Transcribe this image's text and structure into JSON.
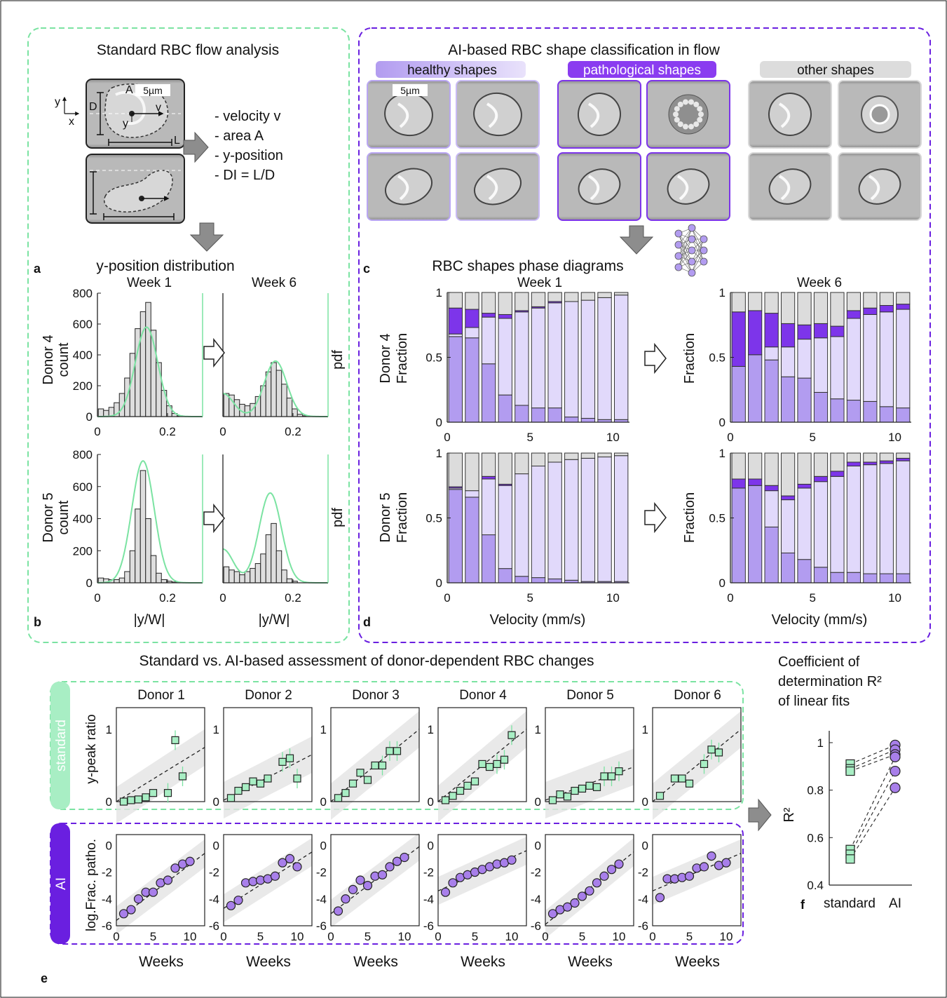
{
  "panel_letters": {
    "a": "a",
    "b": "b",
    "c": "c",
    "d": "d",
    "e": "e",
    "f": "f"
  },
  "standard": {
    "title": "Standard RBC flow analysis",
    "scale_bar": "5µm",
    "axis_y": "y",
    "axis_x": "x",
    "cell_labels": {
      "A": "A",
      "D": "D",
      "L": "L",
      "v": "v",
      "y": "y"
    },
    "params": [
      "- velocity v",
      "- area A",
      "- y-position",
      "- DI = L/D"
    ],
    "dist_title": "y-position distribution",
    "week1": "Week 1",
    "week6": "Week 6",
    "donor4": "Donor 4",
    "donor5": "Donor 5",
    "ylabel_left": "count",
    "ylabel_right": "pdf",
    "xlabel": "|y/W|"
  },
  "ai": {
    "title": "AI-based RBC shape classification in flow",
    "healthy": "healthy shapes",
    "patho": "pathological shapes",
    "other": "other shapes",
    "scale_bar": "5µm",
    "phase_title": "RBC shapes phase diagrams",
    "week1": "Week 1",
    "week6": "Week 6",
    "donor4": "Donor 4",
    "donor5": "Donor 5",
    "ylabel": "Fraction",
    "xlabel": "Velocity (mm/s)"
  },
  "bottom": {
    "title": "Standard vs. AI-based assessment of donor-dependent RBC changes",
    "donors": [
      "Donor 1",
      "Donor 2",
      "Donor 3",
      "Donor 4",
      "Donor 5",
      "Donor 6"
    ],
    "standard_tab": "standard",
    "ai_tab": "AI",
    "ylabel_std": "y-peak ratio",
    "ylabel_ai": "log.Frac. patho.",
    "xlabel": "Weeks",
    "r2_title": [
      "Coefficient of",
      "determination R²",
      "of linear fits"
    ],
    "r2_ylabel": "R²",
    "r2_x": [
      "standard",
      "AI"
    ]
  },
  "colors": {
    "green": "#7be3a2",
    "green_fill": "#a8eec4",
    "purple": "#6a1fe0",
    "purple_marker": "#a87fea",
    "healthy_fill": "#b29cf0",
    "healthy_light": "#e1d9fb",
    "patho_fill": "#7d35ea",
    "other_fill": "#dcdcdc"
  },
  "chart_data": [
    {
      "type": "bar",
      "id": "hist-d4-w1",
      "x": [
        0.01,
        0.025,
        0.04,
        0.055,
        0.07,
        0.085,
        0.1,
        0.115,
        0.13,
        0.145,
        0.16,
        0.175,
        0.19,
        0.205,
        0.22,
        0.235
      ],
      "values": [
        50,
        40,
        60,
        90,
        150,
        250,
        410,
        570,
        680,
        740,
        560,
        350,
        170,
        70,
        20,
        5
      ],
      "pdf_peaks": [
        [
          0.14,
          580
        ]
      ],
      "xlim": [
        0,
        0.3
      ],
      "ylim": [
        0,
        800
      ],
      "yticks": [
        0,
        200,
        400,
        600,
        800
      ],
      "xticks": [
        0,
        0.2
      ]
    },
    {
      "type": "bar",
      "id": "hist-d4-w6",
      "x": [
        0.01,
        0.025,
        0.04,
        0.055,
        0.07,
        0.085,
        0.1,
        0.115,
        0.13,
        0.145,
        0.16,
        0.175,
        0.19,
        0.205,
        0.22,
        0.235
      ],
      "values": [
        150,
        140,
        110,
        80,
        70,
        85,
        130,
        200,
        290,
        350,
        300,
        210,
        120,
        50,
        15,
        5
      ],
      "pdf_peaks": [
        [
          0,
          150
        ],
        [
          0.15,
          360
        ]
      ],
      "xlim": [
        0,
        0.3
      ],
      "ylim": [
        0,
        800
      ],
      "xticks": [
        0,
        0.2
      ]
    },
    {
      "type": "bar",
      "id": "hist-d5-w1",
      "x": [
        0.01,
        0.025,
        0.04,
        0.055,
        0.07,
        0.085,
        0.1,
        0.115,
        0.13,
        0.145,
        0.16,
        0.175,
        0.19,
        0.205,
        0.22,
        0.235
      ],
      "values": [
        30,
        25,
        20,
        20,
        30,
        70,
        200,
        460,
        700,
        400,
        170,
        60,
        20,
        10,
        5,
        0
      ],
      "pdf_peaks": [
        [
          0.13,
          760
        ]
      ],
      "xlim": [
        0,
        0.3
      ],
      "ylim": [
        0,
        800
      ],
      "yticks": [
        0,
        200,
        400,
        600,
        800
      ],
      "xticks": [
        0,
        0.2
      ]
    },
    {
      "type": "bar",
      "id": "hist-d5-w6",
      "x": [
        0.01,
        0.025,
        0.04,
        0.055,
        0.07,
        0.085,
        0.1,
        0.115,
        0.13,
        0.145,
        0.16,
        0.175,
        0.19,
        0.205,
        0.22,
        0.235
      ],
      "values": [
        100,
        80,
        70,
        50,
        70,
        90,
        120,
        180,
        300,
        370,
        200,
        80,
        25,
        10,
        0,
        0
      ],
      "pdf_peaks": [
        [
          0,
          210
        ],
        [
          0.135,
          560
        ]
      ],
      "xlim": [
        0,
        0.3
      ],
      "ylim": [
        0,
        800
      ],
      "xticks": [
        0,
        0.2
      ]
    },
    {
      "type": "bar",
      "id": "phase-d4-w1",
      "stacked": true,
      "categories": [
        0.5,
        1.5,
        2.5,
        3.5,
        4.5,
        5.5,
        6.5,
        7.5,
        8.5,
        9.5,
        10.5
      ],
      "series": [
        {
          "values": [
            0.66,
            0.65,
            0.45,
            0.21,
            0.13,
            0.11,
            0.11,
            0.04,
            0.03,
            0.02,
            0.02
          ]
        },
        {
          "values": [
            0.02,
            0.08,
            0.36,
            0.59,
            0.72,
            0.77,
            0.81,
            0.89,
            0.91,
            0.94,
            0.96
          ]
        },
        {
          "values": [
            0.2,
            0.14,
            0.03,
            0.03,
            0.01,
            0.01,
            0.01,
            0,
            0,
            0,
            0
          ]
        },
        {
          "values": [
            0.12,
            0.13,
            0.16,
            0.17,
            0.14,
            0.11,
            0.07,
            0.07,
            0.06,
            0.04,
            0.02
          ]
        }
      ],
      "xlim": [
        0,
        11
      ],
      "ylim": [
        0,
        1
      ],
      "xticks": [
        0,
        5,
        10
      ],
      "yticks": [
        0,
        0.5,
        1
      ]
    },
    {
      "type": "bar",
      "id": "phase-d4-w6",
      "stacked": true,
      "categories": [
        0.5,
        1.5,
        2.5,
        3.5,
        4.5,
        5.5,
        6.5,
        7.5,
        8.5,
        9.5,
        10.5
      ],
      "series": [
        {
          "values": [
            0.43,
            0.52,
            0.48,
            0.35,
            0.34,
            0.23,
            0.18,
            0.17,
            0.16,
            0.12,
            0.11
          ]
        },
        {
          "values": [
            0,
            0,
            0.1,
            0.23,
            0.3,
            0.42,
            0.48,
            0.63,
            0.67,
            0.73,
            0.76
          ]
        },
        {
          "values": [
            0.42,
            0.34,
            0.26,
            0.18,
            0.11,
            0.11,
            0.08,
            0.06,
            0.05,
            0.05,
            0.04
          ]
        },
        {
          "values": [
            0.15,
            0.14,
            0.16,
            0.24,
            0.25,
            0.24,
            0.26,
            0.14,
            0.12,
            0.1,
            0.09
          ]
        }
      ],
      "xlim": [
        0,
        11
      ],
      "ylim": [
        0,
        1
      ],
      "xticks": [
        0,
        5,
        10
      ],
      "yticks": [
        0,
        0.5,
        1
      ]
    },
    {
      "type": "bar",
      "id": "phase-d5-w1",
      "stacked": true,
      "categories": [
        0.5,
        1.5,
        2.5,
        3.5,
        4.5,
        5.5,
        6.5,
        7.5,
        8.5,
        9.5,
        10.5
      ],
      "series": [
        {
          "values": [
            0.72,
            0.66,
            0.37,
            0.11,
            0.05,
            0.04,
            0.03,
            0.02,
            0.01,
            0.01,
            0.01
          ]
        },
        {
          "values": [
            0.01,
            0.05,
            0.43,
            0.64,
            0.79,
            0.86,
            0.9,
            0.93,
            0.95,
            0.96,
            0.97
          ]
        },
        {
          "values": [
            0.01,
            0,
            0.02,
            0.01,
            0,
            0,
            0,
            0,
            0,
            0,
            0
          ]
        },
        {
          "values": [
            0.26,
            0.29,
            0.18,
            0.24,
            0.16,
            0.1,
            0.07,
            0.05,
            0.04,
            0.03,
            0.02
          ]
        }
      ],
      "xlim": [
        0,
        11
      ],
      "ylim": [
        0,
        1
      ],
      "xticks": [
        0,
        5,
        10
      ],
      "yticks": [
        0,
        0.5,
        1
      ]
    },
    {
      "type": "bar",
      "id": "phase-d5-w6",
      "stacked": true,
      "categories": [
        0.5,
        1.5,
        2.5,
        3.5,
        4.5,
        5.5,
        6.5,
        7.5,
        8.5,
        9.5,
        10.5
      ],
      "series": [
        {
          "values": [
            0.73,
            0.75,
            0.43,
            0.23,
            0.18,
            0.12,
            0.08,
            0.08,
            0.07,
            0.07,
            0.07
          ]
        },
        {
          "values": [
            0,
            0,
            0.28,
            0.41,
            0.55,
            0.66,
            0.74,
            0.82,
            0.84,
            0.85,
            0.87
          ]
        },
        {
          "values": [
            0.07,
            0.05,
            0.04,
            0.03,
            0.03,
            0.04,
            0.04,
            0.03,
            0.02,
            0.02,
            0.02
          ]
        },
        {
          "values": [
            0.2,
            0.2,
            0.25,
            0.33,
            0.24,
            0.18,
            0.14,
            0.07,
            0.07,
            0.06,
            0.04
          ]
        }
      ],
      "xlim": [
        0,
        11
      ],
      "ylim": [
        0,
        1
      ],
      "xticks": [
        0,
        5,
        10
      ],
      "yticks": [
        0,
        0.5,
        1
      ]
    },
    {
      "type": "scatter",
      "id": "std-donor1",
      "x": [
        1,
        2,
        3,
        4,
        5,
        7,
        8,
        9
      ],
      "y": [
        0.0,
        0.02,
        0.03,
        0.06,
        0.12,
        0.12,
        0.85,
        0.35
      ],
      "fit": [
        [
          0,
          -0.05
        ],
        [
          12,
          0.75
        ]
      ],
      "xlim": [
        0,
        12
      ],
      "ylim": [
        0,
        1.3
      ],
      "yticks": [
        0,
        1
      ]
    },
    {
      "type": "scatter",
      "id": "std-donor2",
      "x": [
        1,
        2,
        3,
        4,
        5,
        6,
        8,
        9,
        10
      ],
      "y": [
        0.05,
        0.15,
        0.2,
        0.28,
        0.25,
        0.32,
        0.55,
        0.6,
        0.32
      ],
      "fit": [
        [
          0,
          0.02
        ],
        [
          12,
          0.65
        ]
      ],
      "xlim": [
        0,
        12
      ],
      "ylim": [
        0,
        1.3
      ],
      "yticks": [
        0,
        1
      ]
    },
    {
      "type": "scatter",
      "id": "std-donor3",
      "x": [
        1,
        2,
        3,
        4,
        5,
        6,
        7,
        8,
        9
      ],
      "y": [
        0.05,
        0.12,
        0.25,
        0.4,
        0.3,
        0.5,
        0.5,
        0.7,
        0.7
      ],
      "fit": [
        [
          0,
          0.0
        ],
        [
          12,
          1.0
        ]
      ],
      "xlim": [
        0,
        12
      ],
      "ylim": [
        0,
        1.3
      ],
      "yticks": [
        0,
        1
      ]
    },
    {
      "type": "scatter",
      "id": "std-donor4",
      "x": [
        1,
        2,
        3,
        4,
        5,
        6,
        7,
        8,
        9,
        10
      ],
      "y": [
        0.02,
        0.08,
        0.15,
        0.22,
        0.28,
        0.52,
        0.48,
        0.52,
        0.58,
        0.92
      ],
      "fit": [
        [
          0,
          -0.03
        ],
        [
          12,
          1.0
        ]
      ],
      "xlim": [
        0,
        12
      ],
      "ylim": [
        0,
        1.3
      ],
      "yticks": [
        0,
        1
      ]
    },
    {
      "type": "scatter",
      "id": "std-donor5",
      "x": [
        1,
        2,
        3,
        4,
        5,
        6,
        7,
        8,
        9,
        10
      ],
      "y": [
        0.02,
        0.1,
        0.07,
        0.15,
        0.18,
        0.22,
        0.2,
        0.35,
        0.35,
        0.42
      ],
      "fit": [
        [
          0,
          0.02
        ],
        [
          12,
          0.48
        ]
      ],
      "xlim": [
        0,
        12
      ],
      "ylim": [
        0,
        1.3
      ],
      "yticks": [
        0,
        1
      ]
    },
    {
      "type": "scatter",
      "id": "std-donor6",
      "x": [
        1,
        3,
        4,
        5,
        7,
        8,
        9
      ],
      "y": [
        0.08,
        0.32,
        0.32,
        0.25,
        0.52,
        0.72,
        0.68
      ],
      "fit": [
        [
          0,
          0.0
        ],
        [
          12,
          1.0
        ]
      ],
      "xlim": [
        0,
        12
      ],
      "ylim": [
        0,
        1.3
      ],
      "yticks": [
        0,
        1
      ]
    },
    {
      "type": "scatter",
      "id": "ai-donor1",
      "x": [
        1,
        2,
        3,
        4,
        5,
        6,
        7,
        8,
        9,
        10
      ],
      "y": [
        -5.1,
        -4.8,
        -4.0,
        -3.5,
        -3.5,
        -2.8,
        -2.6,
        -1.7,
        -1.4,
        -1.2
      ],
      "fit": [
        [
          0,
          -5.6
        ],
        [
          12,
          -0.6
        ]
      ],
      "xlim": [
        0,
        12
      ],
      "ylim": [
        -6,
        0.8
      ],
      "yticks": [
        0,
        -2,
        -4,
        -6
      ],
      "xticks": [
        0,
        5,
        10
      ]
    },
    {
      "type": "scatter",
      "id": "ai-donor2",
      "x": [
        1,
        2,
        3,
        4,
        5,
        6,
        7,
        8,
        9,
        10
      ],
      "y": [
        -4.5,
        -4.1,
        -2.8,
        -2.7,
        -2.6,
        -2.5,
        -2.3,
        -1.3,
        -1.0,
        -1.6
      ],
      "fit": [
        [
          0,
          -4.7
        ],
        [
          12,
          -0.5
        ]
      ],
      "xlim": [
        0,
        12
      ],
      "ylim": [
        -6,
        0.8
      ],
      "yticks": [
        0,
        -2,
        -4,
        -6
      ],
      "xticks": [
        0,
        5,
        10
      ]
    },
    {
      "type": "scatter",
      "id": "ai-donor3",
      "x": [
        1,
        2,
        3,
        4,
        5,
        6,
        7,
        8,
        9,
        10
      ],
      "y": [
        -4.9,
        -4.0,
        -3.3,
        -2.6,
        -3.0,
        -2.3,
        -2.2,
        -1.6,
        -1.2,
        -0.9
      ],
      "fit": [
        [
          0,
          -5.1
        ],
        [
          12,
          -0.1
        ]
      ],
      "xlim": [
        0,
        12
      ],
      "ylim": [
        -6,
        0.8
      ],
      "yticks": [
        0,
        -2,
        -4,
        -6
      ],
      "xticks": [
        0,
        5,
        10
      ]
    },
    {
      "type": "scatter",
      "id": "ai-donor4",
      "x": [
        1,
        2,
        3,
        4,
        5,
        6,
        7,
        8,
        9,
        10
      ],
      "y": [
        -3.5,
        -2.8,
        -2.4,
        -2.2,
        -2.0,
        -1.8,
        -1.6,
        -1.4,
        -1.3,
        -1.1
      ],
      "fit": [
        [
          0,
          -3.4
        ],
        [
          12,
          -0.4
        ]
      ],
      "xlim": [
        0,
        12
      ],
      "ylim": [
        -6,
        0.8
      ],
      "yticks": [
        0,
        -2,
        -4,
        -6
      ],
      "xticks": [
        0,
        5,
        10
      ]
    },
    {
      "type": "scatter",
      "id": "ai-donor5",
      "x": [
        1,
        2,
        3,
        4,
        5,
        6,
        7,
        8,
        9,
        10
      ],
      "y": [
        -5.1,
        -4.8,
        -4.6,
        -4.3,
        -3.8,
        -3.4,
        -2.8,
        -2.3,
        -1.8,
        -1.4
      ],
      "fit": [
        [
          0,
          -5.9
        ],
        [
          12,
          -0.5
        ]
      ],
      "xlim": [
        0,
        12
      ],
      "ylim": [
        -6,
        0.8
      ],
      "yticks": [
        0,
        -2,
        -4,
        -6
      ],
      "xticks": [
        0,
        5,
        10
      ]
    },
    {
      "type": "scatter",
      "id": "ai-donor6",
      "x": [
        1,
        2,
        3,
        4,
        5,
        6,
        7,
        8,
        9,
        10
      ],
      "y": [
        -3.9,
        -2.5,
        -2.5,
        -2.4,
        -2.3,
        -1.7,
        -1.6,
        -0.8,
        -1.5,
        -1.3
      ],
      "fit": [
        [
          0,
          -3.4
        ],
        [
          12,
          -0.6
        ]
      ],
      "xlim": [
        0,
        12
      ],
      "ylim": [
        -6,
        0.8
      ],
      "yticks": [
        0,
        -2,
        -4,
        -6
      ],
      "xticks": [
        0,
        5,
        10
      ]
    },
    {
      "type": "scatter",
      "id": "r2-comparison",
      "standard": [
        0.91,
        0.89,
        0.88,
        0.55,
        0.53,
        0.51
      ],
      "AI": [
        0.99,
        0.97,
        0.95,
        0.94,
        0.88,
        0.81
      ],
      "ylim": [
        0.4,
        1.05
      ],
      "yticks": [
        0.4,
        0.6,
        0.8,
        1
      ]
    }
  ]
}
